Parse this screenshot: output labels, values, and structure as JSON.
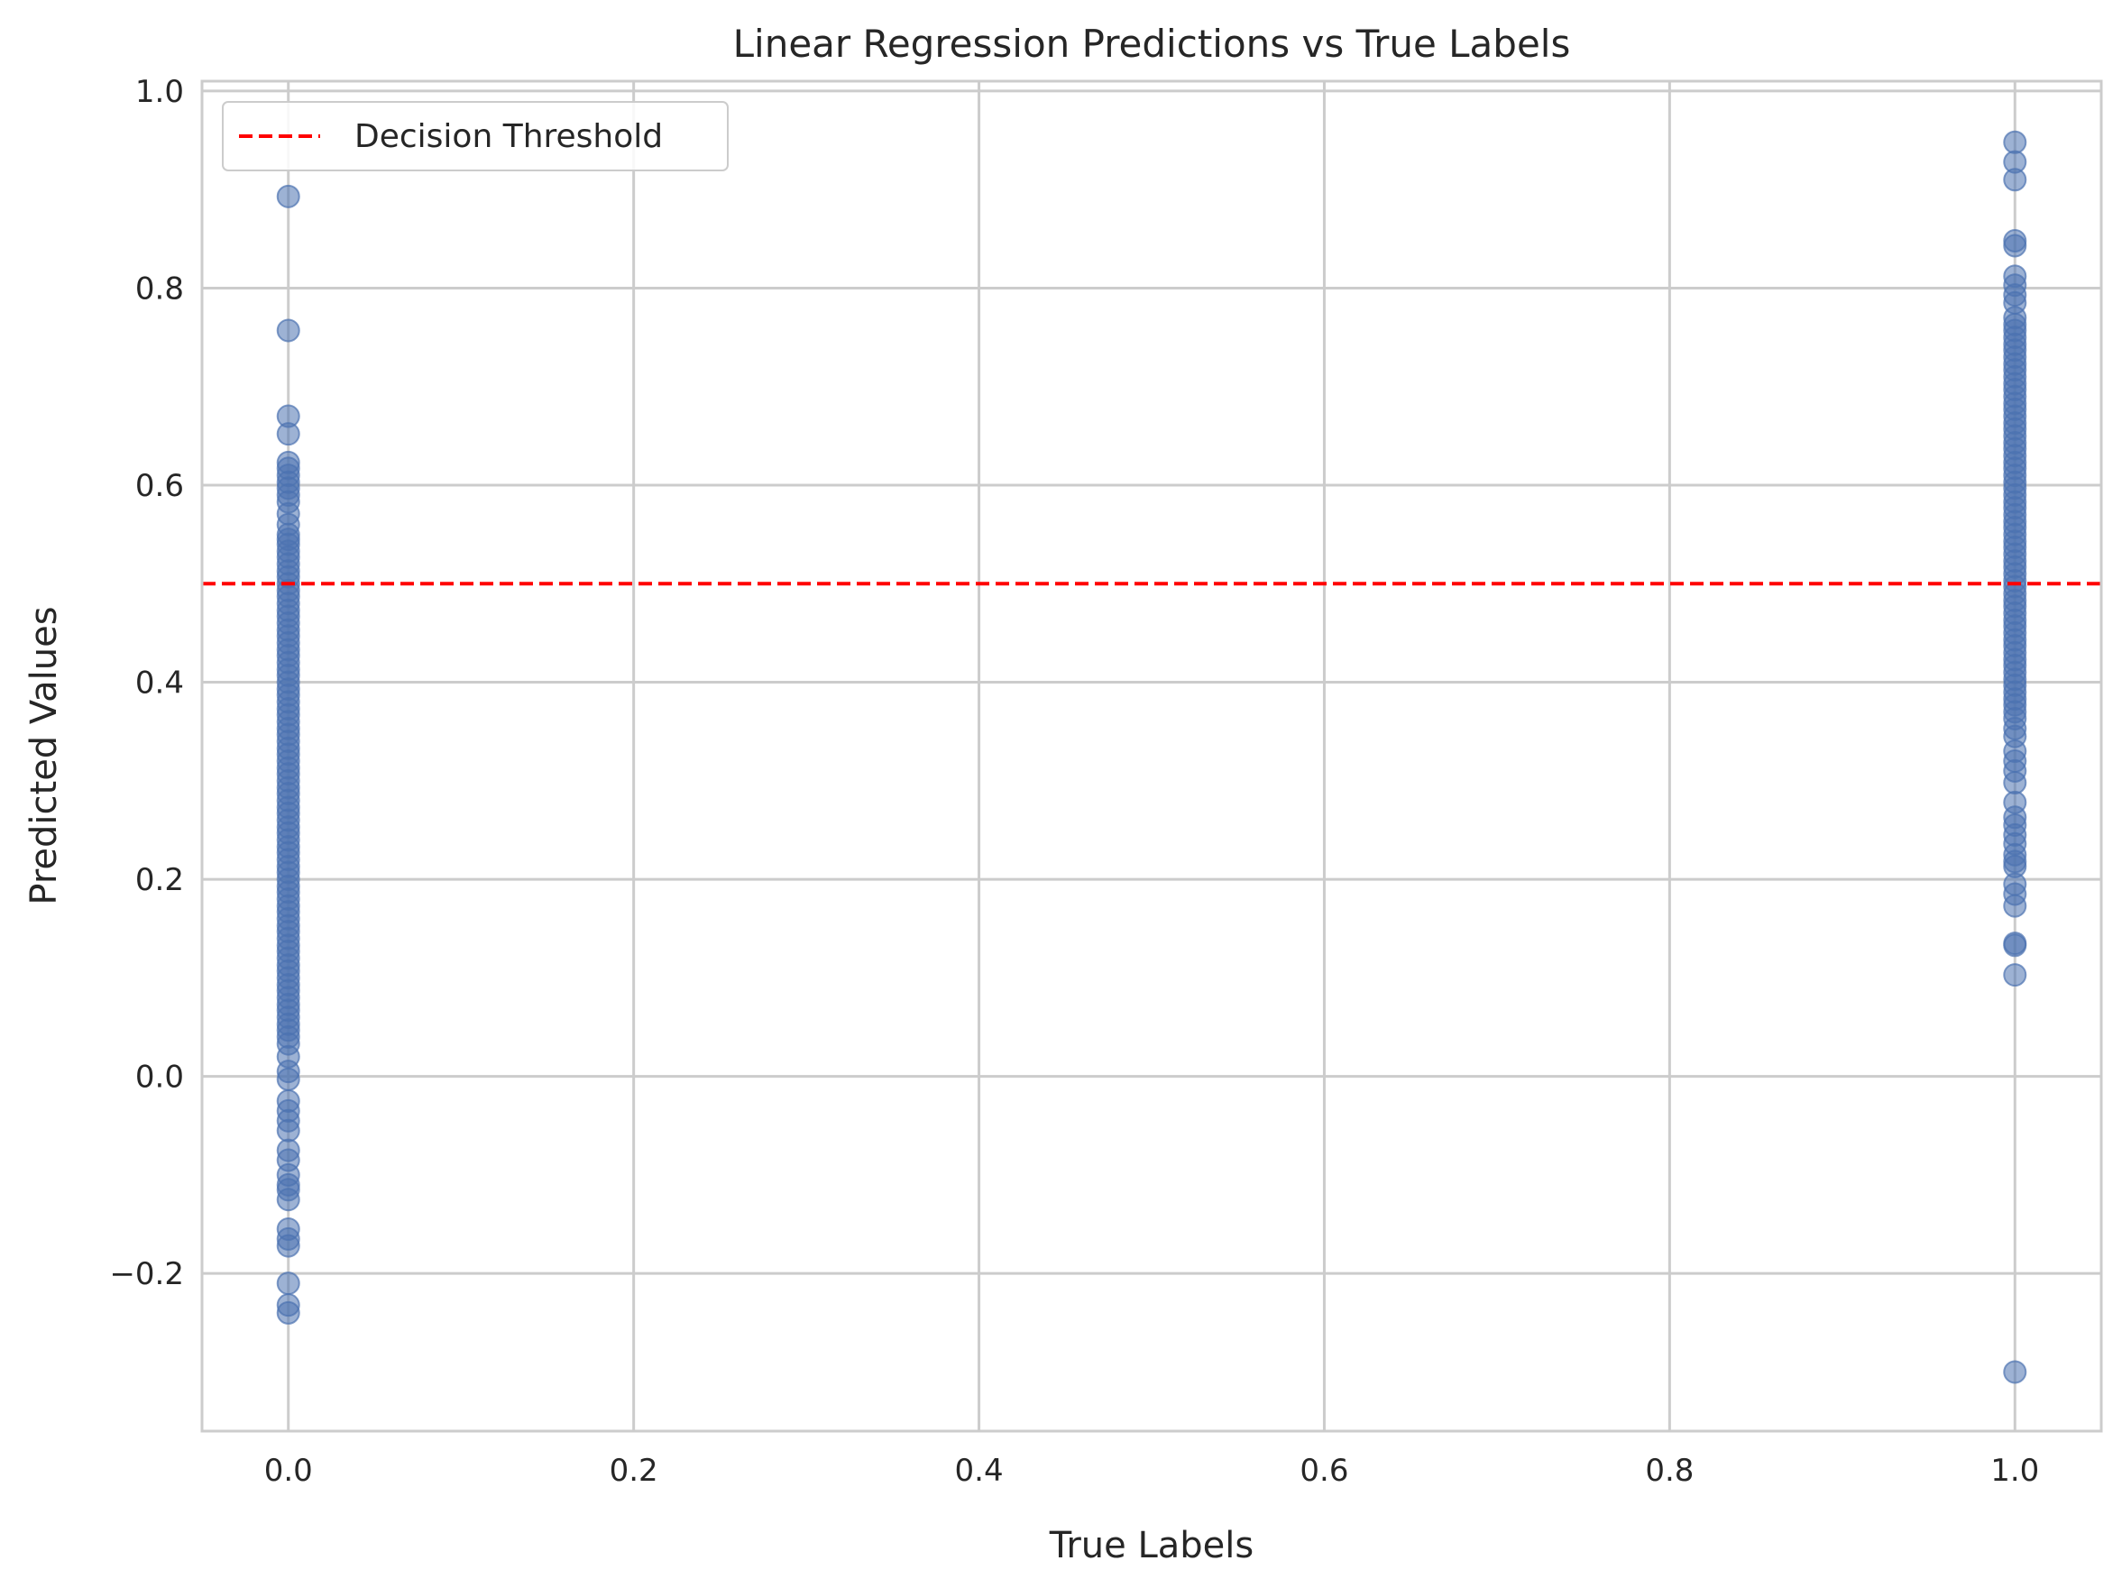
{
  "chart_data": {
    "type": "scatter",
    "title": "Linear Regression Predictions vs True Labels",
    "xlabel": "True Labels",
    "ylabel": "Predicted Values",
    "xlim": [
      -0.05,
      1.05
    ],
    "ylim": [
      -0.36,
      1.01
    ],
    "xticks": [
      0.0,
      0.2,
      0.4,
      0.6,
      0.8,
      1.0
    ],
    "xtick_labels": [
      "0.0",
      "0.2",
      "0.4",
      "0.6",
      "0.8",
      "1.0"
    ],
    "yticks": [
      -0.2,
      0.0,
      0.2,
      0.4,
      0.6,
      0.8,
      1.0
    ],
    "ytick_labels": [
      "−0.2",
      "0.0",
      "0.2",
      "0.4",
      "0.6",
      "0.8",
      "1.0"
    ],
    "grid": true,
    "legend_position": "top-left",
    "threshold": {
      "name": "Decision Threshold",
      "y": 0.5,
      "color": "#ff0000",
      "style": "dashed"
    },
    "point_color": "#4c72b0",
    "series": [
      {
        "x": 0,
        "values": [
          0.893,
          0.757,
          0.67,
          0.652,
          0.623,
          0.617,
          0.61,
          0.603,
          0.597,
          0.59,
          0.583,
          0.571,
          0.56,
          0.55,
          0.545,
          0.54,
          0.533,
          0.527,
          0.52,
          0.513,
          0.507,
          0.5,
          0.493,
          0.487,
          0.48,
          0.473,
          0.467,
          0.46,
          0.453,
          0.447,
          0.44,
          0.433,
          0.427,
          0.42,
          0.413,
          0.407,
          0.4,
          0.393,
          0.387,
          0.38,
          0.373,
          0.367,
          0.36,
          0.353,
          0.347,
          0.34,
          0.333,
          0.327,
          0.32,
          0.313,
          0.307,
          0.3,
          0.293,
          0.287,
          0.28,
          0.273,
          0.267,
          0.26,
          0.253,
          0.247,
          0.24,
          0.233,
          0.227,
          0.22,
          0.213,
          0.207,
          0.2,
          0.193,
          0.187,
          0.18,
          0.173,
          0.167,
          0.16,
          0.153,
          0.147,
          0.14,
          0.133,
          0.127,
          0.12,
          0.113,
          0.107,
          0.1,
          0.093,
          0.087,
          0.08,
          0.073,
          0.067,
          0.06,
          0.053,
          0.047,
          0.04,
          0.033,
          0.02,
          0.005,
          -0.003,
          -0.025,
          -0.035,
          -0.045,
          -0.055,
          -0.075,
          -0.085,
          -0.1,
          -0.11,
          -0.115,
          -0.125,
          -0.155,
          -0.165,
          -0.172,
          -0.21,
          -0.232,
          -0.24
        ]
      },
      {
        "x": 1,
        "values": [
          0.948,
          0.928,
          0.91,
          0.848,
          0.843,
          0.812,
          0.803,
          0.793,
          0.785,
          0.77,
          0.763,
          0.757,
          0.75,
          0.743,
          0.737,
          0.73,
          0.723,
          0.717,
          0.71,
          0.703,
          0.697,
          0.69,
          0.683,
          0.677,
          0.67,
          0.663,
          0.657,
          0.65,
          0.643,
          0.637,
          0.63,
          0.623,
          0.617,
          0.61,
          0.603,
          0.597,
          0.59,
          0.583,
          0.577,
          0.57,
          0.563,
          0.557,
          0.55,
          0.543,
          0.537,
          0.53,
          0.523,
          0.517,
          0.51,
          0.503,
          0.497,
          0.49,
          0.483,
          0.477,
          0.47,
          0.463,
          0.457,
          0.45,
          0.443,
          0.437,
          0.43,
          0.423,
          0.417,
          0.41,
          0.403,
          0.397,
          0.39,
          0.383,
          0.377,
          0.37,
          0.363,
          0.353,
          0.345,
          0.33,
          0.32,
          0.31,
          0.298,
          0.278,
          0.263,
          0.255,
          0.245,
          0.236,
          0.225,
          0.218,
          0.213,
          0.195,
          0.185,
          0.173,
          0.135,
          0.133,
          0.103,
          -0.3
        ]
      }
    ]
  }
}
